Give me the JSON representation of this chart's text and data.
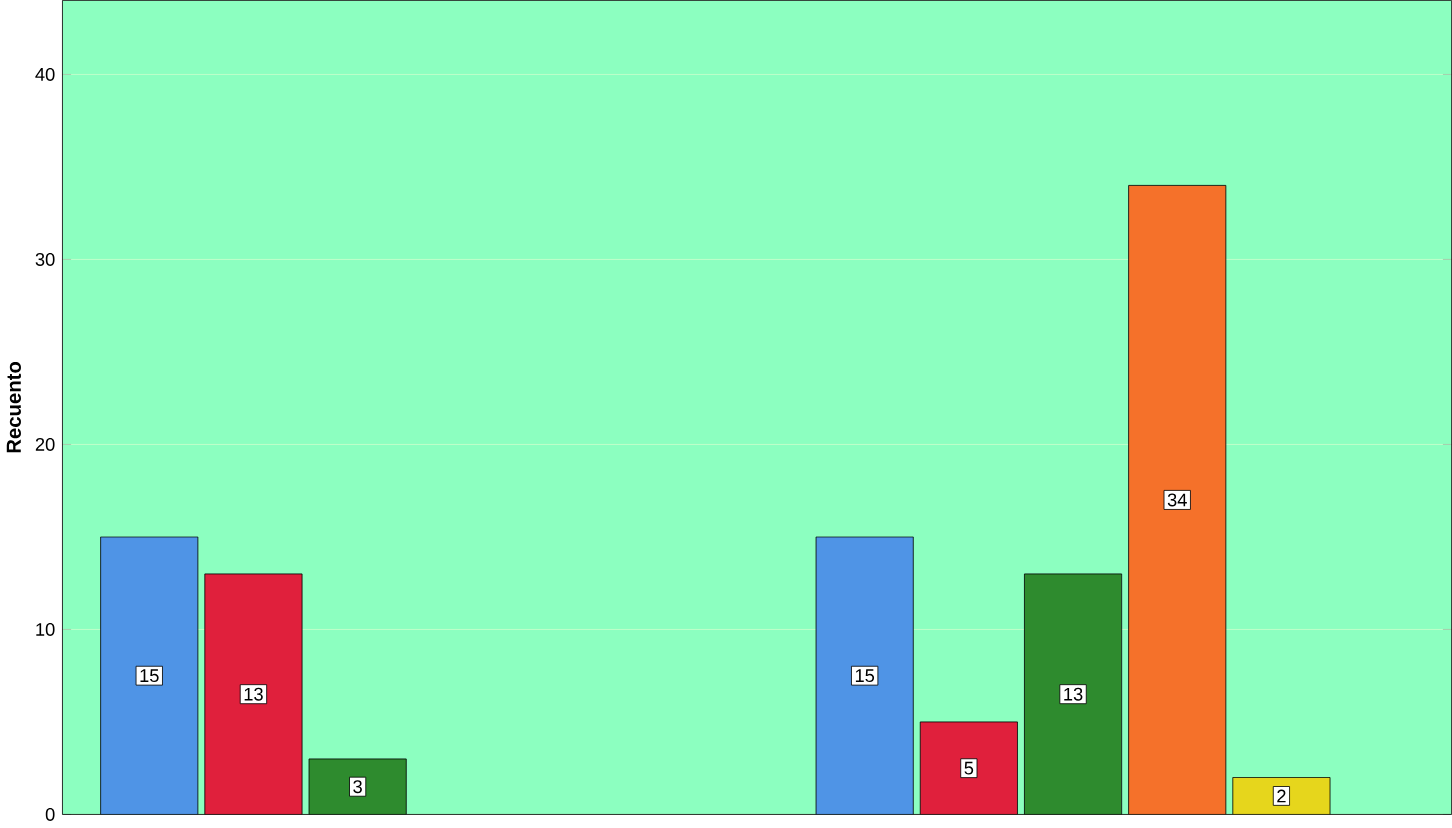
{
  "chart_data": {
    "type": "bar",
    "ylabel": "Recuento",
    "categories": [
      null,
      null
    ],
    "series": [
      {
        "color": "#4f94e6",
        "values": [
          15,
          15
        ]
      },
      {
        "color": "#e0203c",
        "values": [
          13,
          5
        ]
      },
      {
        "color": "#2e8b2e",
        "values": [
          3,
          13
        ]
      },
      {
        "color": "#f5712a",
        "values": [
          null,
          34
        ]
      },
      {
        "color": "#e6d61c",
        "values": [
          null,
          2
        ]
      }
    ],
    "ylim": [
      0,
      44
    ],
    "yticks": [
      0,
      10,
      20,
      30,
      40
    ],
    "grid": "y",
    "data_labels": true
  }
}
